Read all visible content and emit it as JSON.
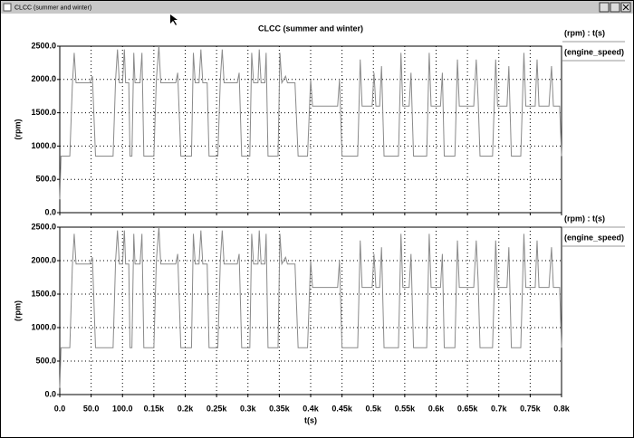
{
  "window_title": "CLCC (summer and winter)",
  "chart_data": [
    {
      "type": "line",
      "title": "CLCC (summer and winter)",
      "y_label": "(rpm)",
      "legend_title": "(rpm) : t(s)",
      "grid": true,
      "show_xtick_labels": false,
      "xlim": [
        0,
        800
      ],
      "ylim": [
        0,
        2500
      ],
      "xticks": [
        {
          "value": 0,
          "label": "0.0"
        },
        {
          "value": 50,
          "label": "50.0"
        },
        {
          "value": 100,
          "label": "100.0"
        },
        {
          "value": 150,
          "label": "0.15k"
        },
        {
          "value": 200,
          "label": "0.2k"
        },
        {
          "value": 250,
          "label": "0.25k"
        },
        {
          "value": 300,
          "label": "0.3k"
        },
        {
          "value": 350,
          "label": "0.35k"
        },
        {
          "value": 400,
          "label": "0.4k"
        },
        {
          "value": 450,
          "label": "0.45k"
        },
        {
          "value": 500,
          "label": "0.5k"
        },
        {
          "value": 550,
          "label": "0.55k"
        },
        {
          "value": 600,
          "label": "0.6k"
        },
        {
          "value": 650,
          "label": "0.65k"
        },
        {
          "value": 700,
          "label": "0.7k"
        },
        {
          "value": 750,
          "label": "0.75k"
        },
        {
          "value": 800,
          "label": "0.8k"
        }
      ],
      "yticks": [
        {
          "value": 0,
          "label": "0.0"
        },
        {
          "value": 500,
          "label": "500.0"
        },
        {
          "value": 1000,
          "label": "1000.0"
        },
        {
          "value": 1500,
          "label": "1500.0"
        },
        {
          "value": 2000,
          "label": "2000.0"
        },
        {
          "value": 2500,
          "label": "2500.0"
        }
      ],
      "x": [
        0,
        2,
        16,
        20,
        23,
        26,
        48,
        52,
        57,
        85,
        89,
        92,
        95,
        100,
        103,
        105,
        110,
        112,
        115,
        118,
        120,
        128,
        131,
        134,
        150,
        154,
        158,
        161,
        185,
        188,
        193,
        210,
        213,
        216,
        222,
        225,
        228,
        235,
        238,
        252,
        256,
        259,
        262,
        283,
        286,
        290,
        303,
        306,
        309,
        316,
        318,
        321,
        327,
        329,
        332,
        348,
        351,
        354,
        360,
        363,
        375,
        380,
        395,
        400,
        403,
        443,
        446,
        450,
        475,
        479,
        482,
        498,
        501,
        504,
        510,
        513,
        517,
        540,
        544,
        547,
        557,
        560,
        564,
        585,
        589,
        592,
        607,
        610,
        613,
        630,
        634,
        637,
        660,
        664,
        667,
        670,
        690,
        695,
        698,
        713,
        716,
        720,
        735,
        740,
        743,
        758,
        761,
        764,
        780,
        784,
        787,
        797,
        800
      ],
      "series": [
        {
          "name": "(engine_speed)",
          "color": "#8a8a8a",
          "values": [
            200,
            850,
            850,
            1900,
            2400,
            1950,
            1950,
            2050,
            850,
            850,
            2000,
            2450,
            1950,
            1950,
            2450,
            1950,
            1950,
            850,
            850,
            2400,
            1950,
            1950,
            2400,
            850,
            850,
            2000,
            2500,
            1950,
            1950,
            2100,
            850,
            850,
            2400,
            1950,
            1950,
            2450,
            1950,
            1950,
            850,
            850,
            2000,
            2450,
            1950,
            1950,
            2100,
            850,
            850,
            2400,
            1950,
            1950,
            2450,
            1950,
            1950,
            2400,
            850,
            850,
            2400,
            1950,
            2050,
            1950,
            1950,
            850,
            850,
            2000,
            1600,
            1600,
            2000,
            850,
            850,
            2300,
            1600,
            1600,
            2100,
            1600,
            1600,
            2200,
            850,
            850,
            2400,
            1600,
            1600,
            2100,
            850,
            850,
            2400,
            1600,
            1600,
            2100,
            850,
            850,
            2300,
            1600,
            1600,
            2300,
            1700,
            850,
            850,
            2300,
            1600,
            1600,
            2200,
            850,
            850,
            2400,
            1600,
            1600,
            2300,
            1600,
            1600,
            2200,
            1600,
            1600,
            850
          ]
        }
      ]
    },
    {
      "type": "line",
      "y_label": "(rpm)",
      "x_label": "t(s)",
      "legend_title": "(rpm) : t(s)",
      "grid": true,
      "show_xtick_labels": true,
      "xlim": [
        0,
        800
      ],
      "ylim": [
        0,
        2500
      ],
      "xticks": [
        {
          "value": 0,
          "label": "0.0"
        },
        {
          "value": 50,
          "label": "50.0"
        },
        {
          "value": 100,
          "label": "100.0"
        },
        {
          "value": 150,
          "label": "0.15k"
        },
        {
          "value": 200,
          "label": "0.2k"
        },
        {
          "value": 250,
          "label": "0.25k"
        },
        {
          "value": 300,
          "label": "0.3k"
        },
        {
          "value": 350,
          "label": "0.35k"
        },
        {
          "value": 400,
          "label": "0.4k"
        },
        {
          "value": 450,
          "label": "0.45k"
        },
        {
          "value": 500,
          "label": "0.5k"
        },
        {
          "value": 550,
          "label": "0.55k"
        },
        {
          "value": 600,
          "label": "0.6k"
        },
        {
          "value": 650,
          "label": "0.65k"
        },
        {
          "value": 700,
          "label": "0.7k"
        },
        {
          "value": 750,
          "label": "0.75k"
        },
        {
          "value": 800,
          "label": "0.8k"
        }
      ],
      "yticks": [
        {
          "value": 0,
          "label": "0.0"
        },
        {
          "value": 500,
          "label": "500.0"
        },
        {
          "value": 1000,
          "label": "1000.0"
        },
        {
          "value": 1500,
          "label": "1500.0"
        },
        {
          "value": 2000,
          "label": "2000.0"
        },
        {
          "value": 2500,
          "label": "2500.0"
        }
      ],
      "x": [
        0,
        2,
        16,
        20,
        23,
        26,
        48,
        52,
        57,
        85,
        89,
        92,
        95,
        100,
        103,
        105,
        110,
        112,
        115,
        118,
        120,
        128,
        131,
        134,
        150,
        154,
        158,
        161,
        185,
        188,
        193,
        210,
        213,
        216,
        222,
        225,
        228,
        235,
        238,
        252,
        256,
        259,
        262,
        283,
        286,
        290,
        303,
        306,
        309,
        316,
        318,
        321,
        327,
        329,
        332,
        348,
        351,
        354,
        360,
        363,
        375,
        380,
        395,
        400,
        403,
        443,
        446,
        450,
        475,
        479,
        482,
        498,
        501,
        504,
        510,
        513,
        517,
        540,
        544,
        547,
        557,
        560,
        564,
        585,
        589,
        592,
        607,
        610,
        613,
        630,
        634,
        637,
        660,
        664,
        667,
        670,
        690,
        695,
        698,
        713,
        716,
        720,
        735,
        740,
        743,
        758,
        761,
        764,
        780,
        784,
        787,
        797,
        800
      ],
      "series": [
        {
          "name": "(engine_speed)",
          "color": "#8a8a8a",
          "values": [
            100,
            700,
            700,
            1900,
            2400,
            1950,
            1950,
            2050,
            700,
            700,
            2000,
            2450,
            1950,
            1950,
            2450,
            1950,
            1950,
            700,
            700,
            2400,
            1950,
            1950,
            2400,
            700,
            700,
            2000,
            2500,
            1950,
            1950,
            2100,
            700,
            700,
            2400,
            1950,
            1950,
            2450,
            1950,
            1950,
            700,
            700,
            2000,
            2450,
            1950,
            1950,
            2100,
            700,
            700,
            2400,
            1950,
            1950,
            2450,
            1950,
            1950,
            2400,
            700,
            700,
            2400,
            1950,
            2050,
            1950,
            1950,
            700,
            700,
            2000,
            1600,
            1600,
            2000,
            700,
            700,
            2300,
            1600,
            1600,
            2100,
            1600,
            1600,
            2200,
            700,
            700,
            2400,
            1600,
            1600,
            2100,
            700,
            700,
            2400,
            1600,
            1600,
            2100,
            700,
            700,
            2300,
            1600,
            1600,
            2300,
            1700,
            700,
            700,
            2300,
            1600,
            1600,
            2200,
            700,
            700,
            2400,
            1600,
            1600,
            2300,
            1600,
            1600,
            2200,
            1600,
            1600,
            700
          ]
        }
      ]
    }
  ]
}
